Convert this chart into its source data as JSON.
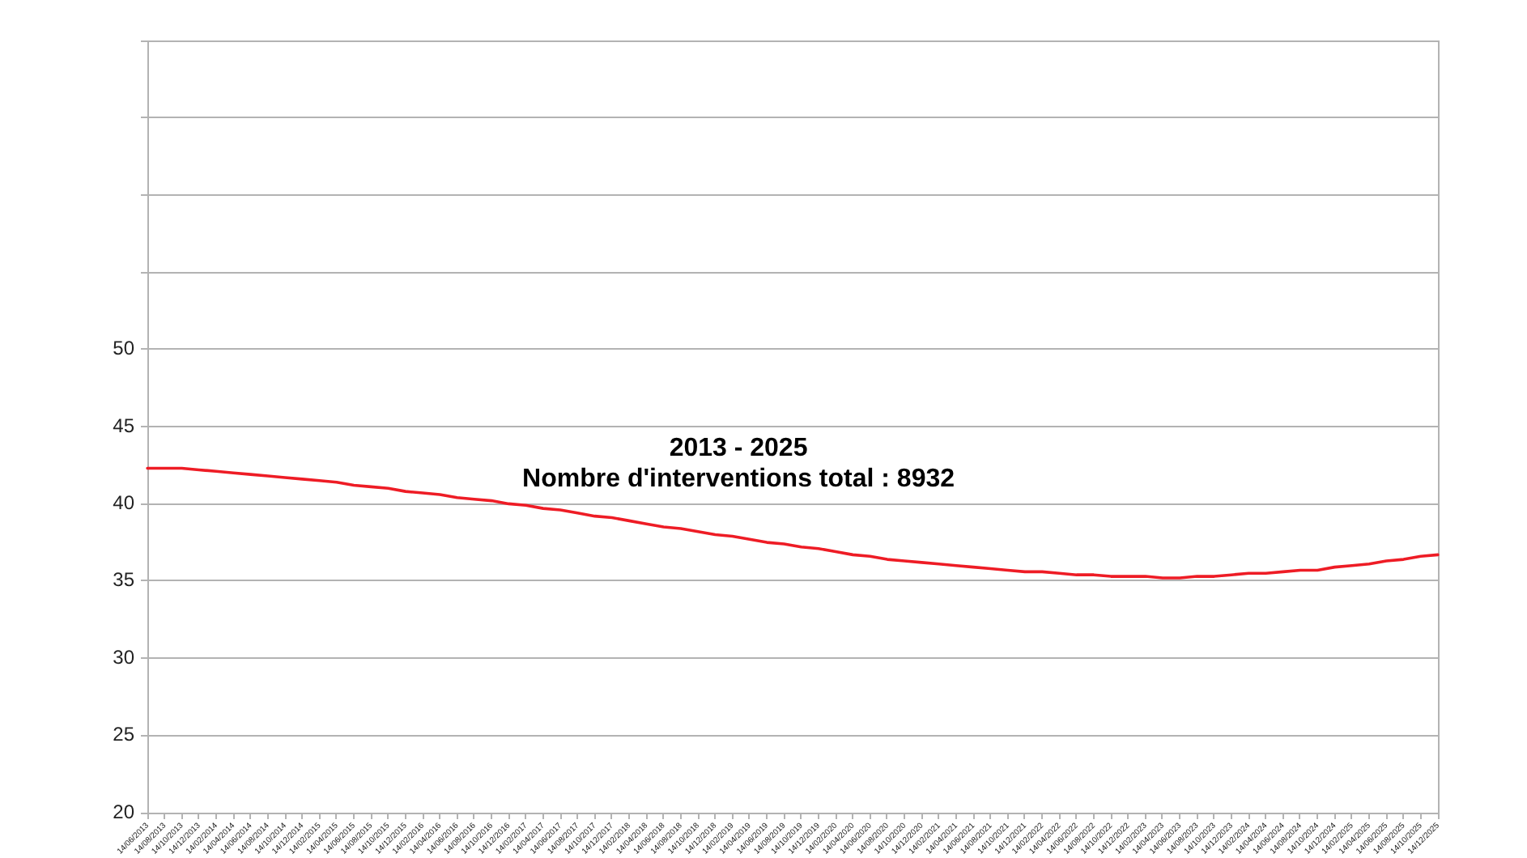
{
  "chart_data": {
    "type": "line",
    "title": "2013 - 2025",
    "subtitle": "Nombre d'interventions total : 8932",
    "categories": [
      "14/06/2013",
      "14/08/2013",
      "14/10/2013",
      "14/12/2013",
      "14/02/2014",
      "14/04/2014",
      "14/06/2014",
      "14/08/2014",
      "14/10/2014",
      "14/12/2014",
      "14/02/2015",
      "14/04/2015",
      "14/06/2015",
      "14/08/2015",
      "14/10/2015",
      "14/12/2015",
      "14/02/2016",
      "14/04/2016",
      "14/06/2016",
      "14/08/2016",
      "14/10/2016",
      "14/12/2016",
      "14/02/2017",
      "14/04/2017",
      "14/06/2017",
      "14/08/2017",
      "14/10/2017",
      "14/12/2017",
      "14/02/2018",
      "14/04/2018",
      "14/06/2018",
      "14/08/2018",
      "14/10/2018",
      "14/12/2018",
      "14/02/2019",
      "14/04/2019",
      "14/06/2019",
      "14/08/2019",
      "14/10/2019",
      "14/12/2019",
      "14/02/2020",
      "14/04/2020",
      "14/06/2020",
      "14/08/2020",
      "14/10/2020",
      "14/12/2020",
      "14/02/2021",
      "14/04/2021",
      "14/06/2021",
      "14/08/2021",
      "14/10/2021",
      "14/12/2021",
      "14/02/2022",
      "14/04/2022",
      "14/06/2022",
      "14/08/2022",
      "14/10/2022",
      "14/12/2022",
      "14/02/2023",
      "14/04/2023",
      "14/06/2023",
      "14/08/2023",
      "14/10/2023",
      "14/12/2023",
      "14/02/2024",
      "14/04/2024",
      "14/06/2024",
      "14/08/2024",
      "14/10/2024",
      "14/12/2024",
      "14/02/2025",
      "14/04/2025",
      "14/06/2025",
      "14/08/2025",
      "14/10/2025",
      "14/12/2025"
    ],
    "values": [
      42.3,
      42.3,
      42.3,
      42.2,
      42.1,
      42.0,
      41.9,
      41.8,
      41.7,
      41.6,
      41.5,
      41.4,
      41.2,
      41.1,
      41.0,
      40.8,
      40.7,
      40.6,
      40.4,
      40.3,
      40.2,
      40.0,
      39.9,
      39.7,
      39.6,
      39.4,
      39.2,
      39.1,
      38.9,
      38.7,
      38.5,
      38.4,
      38.2,
      38.0,
      37.9,
      37.7,
      37.5,
      37.4,
      37.2,
      37.1,
      36.9,
      36.7,
      36.6,
      36.4,
      36.3,
      36.2,
      36.1,
      36.0,
      35.9,
      35.8,
      35.7,
      35.6,
      35.6,
      35.5,
      35.4,
      35.4,
      35.3,
      35.3,
      35.3,
      35.2,
      35.2,
      35.3,
      35.3,
      35.4,
      35.5,
      35.5,
      35.6,
      35.7,
      35.7,
      35.9,
      36.0,
      36.1,
      36.3,
      36.4,
      36.6,
      36.7
    ],
    "color": "#ee1c25",
    "ylim": [
      20,
      70
    ],
    "yticks": [
      20,
      25,
      30,
      35,
      40,
      45,
      50,
      {
        "value": 55,
        "label": null
      },
      {
        "value": 60,
        "label": null
      },
      {
        "value": 65,
        "label": null
      },
      {
        "value": 70,
        "label": null
      }
    ],
    "grid": "y",
    "marker": "none",
    "line_style": "solid"
  }
}
